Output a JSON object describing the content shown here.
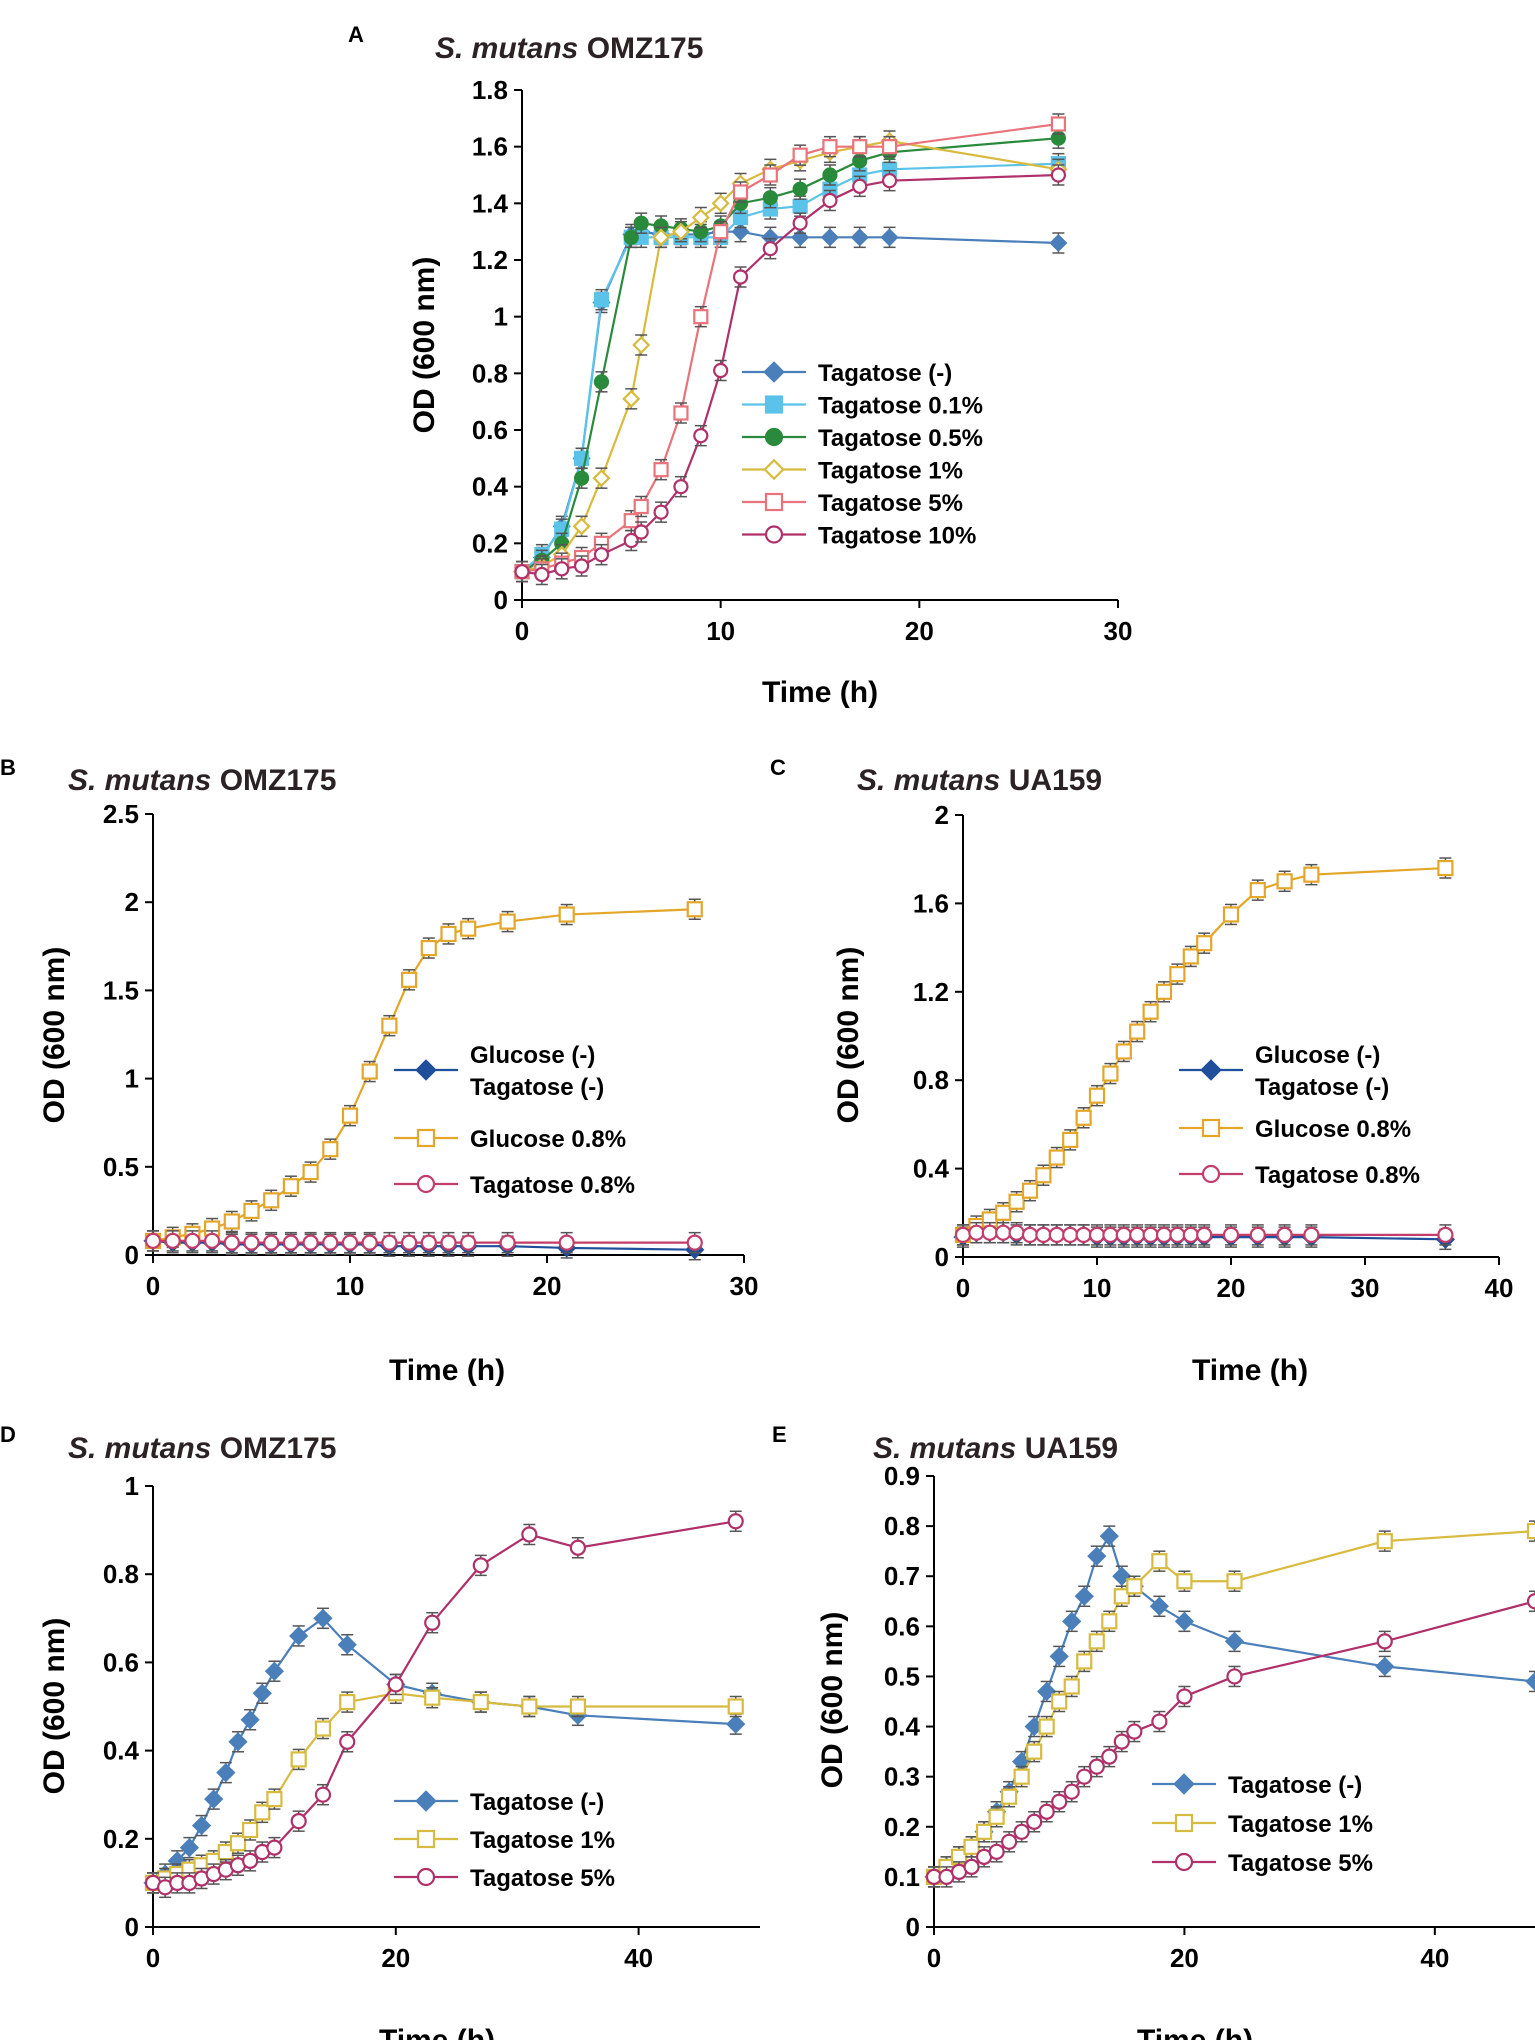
{
  "chart_data": [
    {
      "id": "A",
      "panel_label": "A",
      "type": "line",
      "title": "OMZ175",
      "title_italic": "S. mutans",
      "xlabel": "Time (h)",
      "ylabel": "OD (600 nm)",
      "xlim": [
        0,
        30
      ],
      "ylim": [
        0,
        1.8
      ],
      "xticks": [
        0,
        10,
        20,
        30
      ],
      "xtick_labels": [
        "0",
        "10",
        "20",
        "30"
      ],
      "yticks": [
        0,
        0.2,
        0.4,
        0.6,
        0.8,
        1,
        1.2,
        1.4,
        1.6,
        1.8
      ],
      "ytick_labels": [
        "0",
        "0.2",
        "0.4",
        "0.6",
        "0.8",
        "1",
        "1.2",
        "1.4",
        "1.6",
        "1.8"
      ],
      "legend_position": "right",
      "series": [
        {
          "name": "Tagatose    (-)",
          "color": "#4a7fba",
          "marker": "diamond",
          "filled": true,
          "x": [
            0,
            1,
            2,
            3,
            4,
            5.5,
            6,
            7,
            8,
            9,
            10,
            11,
            12.5,
            14,
            15.5,
            17,
            18.5,
            27
          ],
          "y": [
            0.1,
            0.15,
            0.26,
            0.5,
            1.05,
            1.29,
            1.3,
            1.29,
            1.29,
            1.29,
            1.3,
            1.3,
            1.28,
            1.28,
            1.28,
            1.28,
            1.28,
            1.26
          ]
        },
        {
          "name": "Tagatose 0.1%",
          "color": "#5bc3ea",
          "marker": "square",
          "filled": true,
          "x": [
            0,
            1,
            2,
            3,
            4,
            5.5,
            6,
            7,
            8,
            9,
            10,
            11,
            12.5,
            14,
            15.5,
            17,
            18.5,
            27
          ],
          "y": [
            0.1,
            0.16,
            0.25,
            0.5,
            1.06,
            1.28,
            1.28,
            1.28,
            1.28,
            1.28,
            1.28,
            1.35,
            1.38,
            1.39,
            1.45,
            1.5,
            1.52,
            1.54
          ]
        },
        {
          "name": "Tagatose 0.5%",
          "color": "#2a8a3c",
          "marker": "circle",
          "filled": true,
          "x": [
            0,
            1,
            2,
            3,
            4,
            5.5,
            6,
            7,
            8,
            9,
            10,
            11,
            12.5,
            14,
            15.5,
            17,
            18.5,
            27
          ],
          "y": [
            0.1,
            0.14,
            0.2,
            0.43,
            0.77,
            1.28,
            1.33,
            1.32,
            1.31,
            1.3,
            1.32,
            1.4,
            1.42,
            1.45,
            1.5,
            1.55,
            1.58,
            1.63
          ]
        },
        {
          "name": "Tagatose    1%",
          "color": "#d8bb3e",
          "marker": "diamond",
          "filled": false,
          "x": [
            0,
            1,
            2,
            3,
            4,
            5.5,
            6,
            7,
            8,
            9,
            10,
            11,
            12.5,
            14,
            15.5,
            17,
            18.5,
            27
          ],
          "y": [
            0.1,
            0.12,
            0.16,
            0.26,
            0.43,
            0.71,
            0.9,
            1.28,
            1.3,
            1.35,
            1.4,
            1.47,
            1.52,
            1.55,
            1.58,
            1.6,
            1.62,
            1.52
          ]
        },
        {
          "name": "Tagatose    5%",
          "color": "#e8737a",
          "marker": "square",
          "filled": false,
          "x": [
            0,
            1,
            2,
            3,
            4,
            5.5,
            6,
            7,
            8,
            9,
            10,
            11,
            12.5,
            14,
            15.5,
            17,
            18.5,
            27
          ],
          "y": [
            0.1,
            0.11,
            0.13,
            0.15,
            0.2,
            0.28,
            0.33,
            0.46,
            0.66,
            1.0,
            1.3,
            1.44,
            1.5,
            1.57,
            1.6,
            1.6,
            1.6,
            1.68
          ]
        },
        {
          "name": "Tagatose  10%",
          "color": "#b0306a",
          "marker": "circle",
          "filled": false,
          "x": [
            0,
            1,
            2,
            3,
            4,
            5.5,
            6,
            7,
            8,
            9,
            10,
            11,
            12.5,
            14,
            15.5,
            17,
            18.5,
            27
          ],
          "y": [
            0.1,
            0.09,
            0.11,
            0.12,
            0.16,
            0.21,
            0.24,
            0.31,
            0.4,
            0.58,
            0.81,
            1.14,
            1.24,
            1.33,
            1.41,
            1.46,
            1.48,
            1.5
          ]
        }
      ]
    },
    {
      "id": "B",
      "panel_label": "B",
      "type": "line",
      "title": "OMZ175",
      "title_italic": "S. mutans",
      "xlabel": "Time (h)",
      "ylabel": "OD (600 nm)",
      "xlim": [
        0,
        30
      ],
      "ylim": [
        0,
        2.5
      ],
      "xticks": [
        0,
        10,
        20,
        30
      ],
      "xtick_labels": [
        "0",
        "10",
        "20",
        "30"
      ],
      "yticks": [
        0,
        0.5,
        1,
        1.5,
        2,
        2.5
      ],
      "ytick_labels": [
        "0",
        "0.5",
        "1",
        "1.5",
        "2",
        "2.5"
      ],
      "legend_position": "right",
      "series": [
        {
          "name": "Glucose (-)|Tagatose (-)",
          "color": "#1f4e9a",
          "marker": "diamond",
          "filled": true,
          "x": [
            0,
            1,
            2,
            3,
            4,
            5,
            6,
            7,
            8,
            9,
            10,
            11,
            12,
            13,
            14,
            15,
            16,
            18,
            21,
            27.5
          ],
          "y": [
            0.08,
            0.07,
            0.07,
            0.07,
            0.06,
            0.06,
            0.06,
            0.06,
            0.06,
            0.06,
            0.06,
            0.06,
            0.05,
            0.05,
            0.05,
            0.05,
            0.05,
            0.05,
            0.04,
            0.03
          ]
        },
        {
          "name": "Glucose 0.8%",
          "color": "#e3a628",
          "marker": "square",
          "filled": false,
          "x": [
            0,
            1,
            2,
            3,
            4,
            5,
            6,
            7,
            8,
            9,
            10,
            11,
            12,
            13,
            14,
            15,
            16,
            18,
            21,
            27.5
          ],
          "y": [
            0.08,
            0.1,
            0.12,
            0.15,
            0.19,
            0.25,
            0.31,
            0.39,
            0.47,
            0.6,
            0.79,
            1.04,
            1.3,
            1.56,
            1.74,
            1.82,
            1.85,
            1.89,
            1.93,
            1.96
          ]
        },
        {
          "name": "Tagatose 0.8%",
          "color": "#c23d6a",
          "marker": "circle",
          "filled": false,
          "x": [
            0,
            1,
            2,
            3,
            4,
            5,
            6,
            7,
            8,
            9,
            10,
            11,
            12,
            13,
            14,
            15,
            16,
            18,
            21,
            27.5
          ],
          "y": [
            0.08,
            0.08,
            0.08,
            0.08,
            0.07,
            0.07,
            0.07,
            0.07,
            0.07,
            0.07,
            0.07,
            0.07,
            0.07,
            0.07,
            0.07,
            0.07,
            0.07,
            0.07,
            0.07,
            0.07
          ]
        }
      ]
    },
    {
      "id": "C",
      "panel_label": "C",
      "type": "line",
      "title": "UA159",
      "title_italic": "S. mutans",
      "xlabel": "Time (h)",
      "ylabel": "OD (600 nm)",
      "xlim": [
        0,
        40
      ],
      "ylim": [
        0,
        2
      ],
      "xticks": [
        0,
        10,
        20,
        30,
        40
      ],
      "xtick_labels": [
        "0",
        "10",
        "20",
        "30",
        "40"
      ],
      "yticks": [
        0,
        0.4,
        0.8,
        1.2,
        1.6,
        2
      ],
      "ytick_labels": [
        "0",
        "0.4",
        "0.8",
        "1.2",
        "1.6",
        "2"
      ],
      "legend_position": "right",
      "series": [
        {
          "name": "Glucose (-)|Tagatose (-)",
          "color": "#1f4e9a",
          "marker": "diamond",
          "filled": true,
          "x": [
            0,
            1,
            2,
            3,
            4,
            5,
            6,
            7,
            8,
            9,
            10,
            11,
            12,
            13,
            14,
            15,
            16,
            17,
            18,
            20,
            22,
            24,
            26,
            36
          ],
          "y": [
            0.09,
            0.11,
            0.11,
            0.11,
            0.1,
            0.1,
            0.1,
            0.1,
            0.1,
            0.1,
            0.09,
            0.09,
            0.09,
            0.09,
            0.09,
            0.09,
            0.09,
            0.09,
            0.09,
            0.09,
            0.09,
            0.09,
            0.09,
            0.08
          ]
        },
        {
          "name": "Glucose 0.8%",
          "color": "#e3a628",
          "marker": "square",
          "filled": false,
          "x": [
            0,
            1,
            2,
            3,
            4,
            5,
            6,
            7,
            8,
            9,
            10,
            11,
            12,
            13,
            14,
            15,
            16,
            17,
            18,
            20,
            22,
            24,
            26,
            36
          ],
          "y": [
            0.1,
            0.14,
            0.17,
            0.2,
            0.25,
            0.3,
            0.37,
            0.45,
            0.53,
            0.63,
            0.73,
            0.83,
            0.93,
            1.02,
            1.11,
            1.2,
            1.28,
            1.36,
            1.42,
            1.55,
            1.66,
            1.7,
            1.73,
            1.76
          ]
        },
        {
          "name": "Tagatose 0.8%",
          "color": "#c23d6a",
          "marker": "circle",
          "filled": false,
          "x": [
            0,
            1,
            2,
            3,
            4,
            5,
            6,
            7,
            8,
            9,
            10,
            11,
            12,
            13,
            14,
            15,
            16,
            17,
            18,
            20,
            22,
            24,
            26,
            36
          ],
          "y": [
            0.1,
            0.11,
            0.11,
            0.11,
            0.11,
            0.1,
            0.1,
            0.1,
            0.1,
            0.1,
            0.1,
            0.1,
            0.1,
            0.1,
            0.1,
            0.1,
            0.1,
            0.1,
            0.1,
            0.1,
            0.1,
            0.1,
            0.1,
            0.1
          ]
        }
      ]
    },
    {
      "id": "D",
      "panel_label": "D",
      "type": "line",
      "title": "OMZ175",
      "title_italic": "S. mutans",
      "xlabel": "Time (h)",
      "ylabel": "OD (600 nm)",
      "xlim": [
        0,
        50
      ],
      "ylim": [
        0,
        1
      ],
      "xticks": [
        0,
        20,
        40
      ],
      "xtick_labels": [
        "0",
        "20",
        "40"
      ],
      "yticks": [
        0,
        0.2,
        0.4,
        0.6,
        0.8,
        1
      ],
      "ytick_labels": [
        "0",
        "0.2",
        "0.4",
        "0.6",
        "0.8",
        "1"
      ],
      "legend_position": "bottom-right",
      "series": [
        {
          "name": "Tagatose (-)",
          "color": "#4a7fba",
          "marker": "diamond",
          "filled": true,
          "x": [
            0,
            1,
            2,
            3,
            4,
            5,
            6,
            7,
            8,
            9,
            10,
            12,
            14,
            16,
            20,
            23,
            27,
            31,
            35,
            48
          ],
          "y": [
            0.1,
            0.12,
            0.15,
            0.18,
            0.23,
            0.29,
            0.35,
            0.42,
            0.47,
            0.53,
            0.58,
            0.66,
            0.7,
            0.64,
            0.55,
            0.53,
            0.51,
            0.5,
            0.48,
            0.46
          ]
        },
        {
          "name": "Tagatose 1%",
          "color": "#d8bb3e",
          "marker": "square",
          "filled": false,
          "x": [
            0,
            1,
            2,
            3,
            4,
            5,
            6,
            7,
            8,
            9,
            10,
            12,
            14,
            16,
            20,
            23,
            27,
            31,
            35,
            48
          ],
          "y": [
            0.1,
            0.11,
            0.12,
            0.13,
            0.14,
            0.15,
            0.17,
            0.19,
            0.22,
            0.26,
            0.29,
            0.38,
            0.45,
            0.51,
            0.53,
            0.52,
            0.51,
            0.5,
            0.5,
            0.5
          ]
        },
        {
          "name": "Tagatose 5%",
          "color": "#b0306a",
          "marker": "circle",
          "filled": false,
          "x": [
            0,
            1,
            2,
            3,
            4,
            5,
            6,
            7,
            8,
            9,
            10,
            12,
            14,
            16,
            20,
            23,
            27,
            31,
            35,
            48
          ],
          "y": [
            0.1,
            0.09,
            0.1,
            0.1,
            0.11,
            0.12,
            0.13,
            0.14,
            0.15,
            0.17,
            0.18,
            0.24,
            0.3,
            0.42,
            0.55,
            0.69,
            0.82,
            0.89,
            0.86,
            0.92
          ]
        }
      ]
    },
    {
      "id": "E",
      "panel_label": "E",
      "type": "line",
      "title": "UA159",
      "title_italic": "S. mutans",
      "xlabel": "Time (h)",
      "ylabel": "OD (600 nm)",
      "xlim": [
        0,
        48
      ],
      "ylim": [
        0,
        0.9
      ],
      "xticks": [
        0,
        20,
        40
      ],
      "xtick_labels": [
        "0",
        "20",
        "40"
      ],
      "yticks": [
        0,
        0.1,
        0.2,
        0.3,
        0.4,
        0.5,
        0.6,
        0.7,
        0.8,
        0.9
      ],
      "ytick_labels": [
        "0",
        "0.1",
        "0.2",
        "0.3",
        "0.4",
        "0.5",
        "0.6",
        "0.7",
        "0.8",
        "0.9"
      ],
      "legend_position": "bottom-right",
      "series": [
        {
          "name": "Tagatose (-)",
          "color": "#4a7fba",
          "marker": "diamond",
          "filled": true,
          "x": [
            0,
            1,
            2,
            3,
            4,
            5,
            6,
            7,
            8,
            9,
            10,
            11,
            12,
            13,
            14,
            15,
            16,
            18,
            20,
            24,
            36,
            48
          ],
          "y": [
            0.1,
            0.12,
            0.14,
            0.16,
            0.19,
            0.23,
            0.27,
            0.33,
            0.4,
            0.47,
            0.54,
            0.61,
            0.66,
            0.74,
            0.78,
            0.7,
            0.68,
            0.64,
            0.61,
            0.57,
            0.52,
            0.49
          ]
        },
        {
          "name": "Tagatose 1%",
          "color": "#d8bb3e",
          "marker": "square",
          "filled": false,
          "x": [
            0,
            1,
            2,
            3,
            4,
            5,
            6,
            7,
            8,
            9,
            10,
            11,
            12,
            13,
            14,
            15,
            16,
            18,
            20,
            24,
            36,
            48
          ],
          "y": [
            0.1,
            0.12,
            0.14,
            0.16,
            0.19,
            0.22,
            0.26,
            0.3,
            0.35,
            0.4,
            0.45,
            0.48,
            0.53,
            0.57,
            0.61,
            0.66,
            0.68,
            0.73,
            0.69,
            0.69,
            0.77,
            0.79
          ]
        },
        {
          "name": "Tagatose 5%",
          "color": "#b0306a",
          "marker": "circle",
          "filled": false,
          "x": [
            0,
            1,
            2,
            3,
            4,
            5,
            6,
            7,
            8,
            9,
            10,
            11,
            12,
            13,
            14,
            15,
            16,
            18,
            20,
            24,
            36,
            48
          ],
          "y": [
            0.1,
            0.1,
            0.11,
            0.12,
            0.14,
            0.15,
            0.17,
            0.19,
            0.21,
            0.23,
            0.25,
            0.27,
            0.3,
            0.32,
            0.34,
            0.37,
            0.39,
            0.41,
            0.46,
            0.5,
            0.57,
            0.65
          ]
        }
      ]
    }
  ]
}
